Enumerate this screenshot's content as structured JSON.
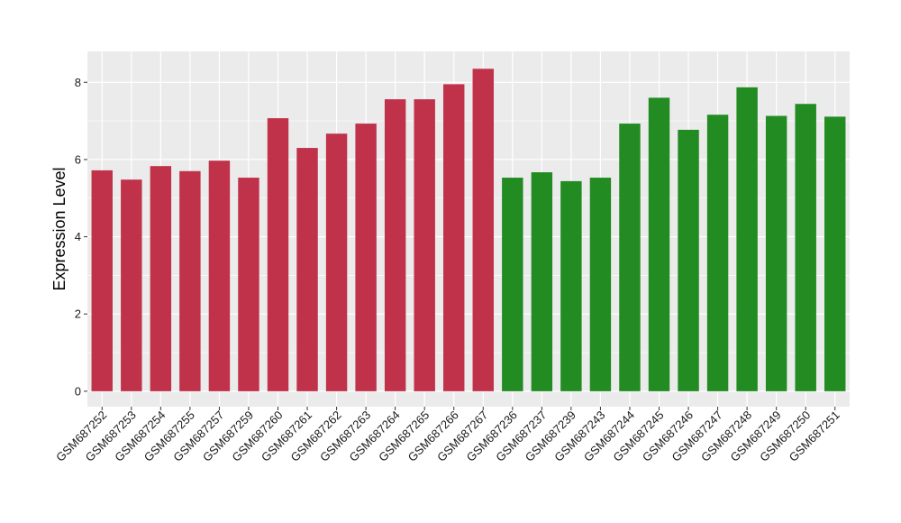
{
  "chart_data": {
    "type": "bar",
    "title": "",
    "xlabel": "",
    "ylabel": "Expression Level",
    "ylim": [
      -0.4,
      8.8
    ],
    "yticks": [
      0,
      2,
      4,
      6,
      8
    ],
    "grid": true,
    "legend": "none",
    "categories": [
      "GSM687252",
      "GSM687253",
      "GSM687254",
      "GSM687255",
      "GSM687257",
      "GSM687259",
      "GSM687260",
      "GSM687261",
      "GSM687262",
      "GSM687263",
      "GSM687264",
      "GSM687265",
      "GSM687266",
      "GSM687267",
      "GSM687236",
      "GSM687237",
      "GSM687239",
      "GSM687243",
      "GSM687244",
      "GSM687245",
      "GSM687246",
      "GSM687247",
      "GSM687248",
      "GSM687249",
      "GSM687250",
      "GSM687251"
    ],
    "values": [
      5.72,
      5.48,
      5.83,
      5.7,
      5.97,
      5.53,
      7.07,
      6.3,
      6.67,
      6.93,
      7.56,
      7.56,
      7.95,
      8.35,
      5.53,
      5.67,
      5.44,
      5.53,
      6.93,
      7.6,
      6.77,
      7.16,
      7.87,
      7.13,
      7.44,
      7.11
    ],
    "bar_colors": [
      "#c0314a",
      "#c0314a",
      "#c0314a",
      "#c0314a",
      "#c0314a",
      "#c0314a",
      "#c0314a",
      "#c0314a",
      "#c0314a",
      "#c0314a",
      "#c0314a",
      "#c0314a",
      "#c0314a",
      "#c0314a",
      "#228b22",
      "#228b22",
      "#228b22",
      "#228b22",
      "#228b22",
      "#228b22",
      "#228b22",
      "#228b22",
      "#228b22",
      "#228b22",
      "#228b22",
      "#228b22"
    ],
    "panel_color": "#ebebeb",
    "grid_color": "#ffffff"
  }
}
